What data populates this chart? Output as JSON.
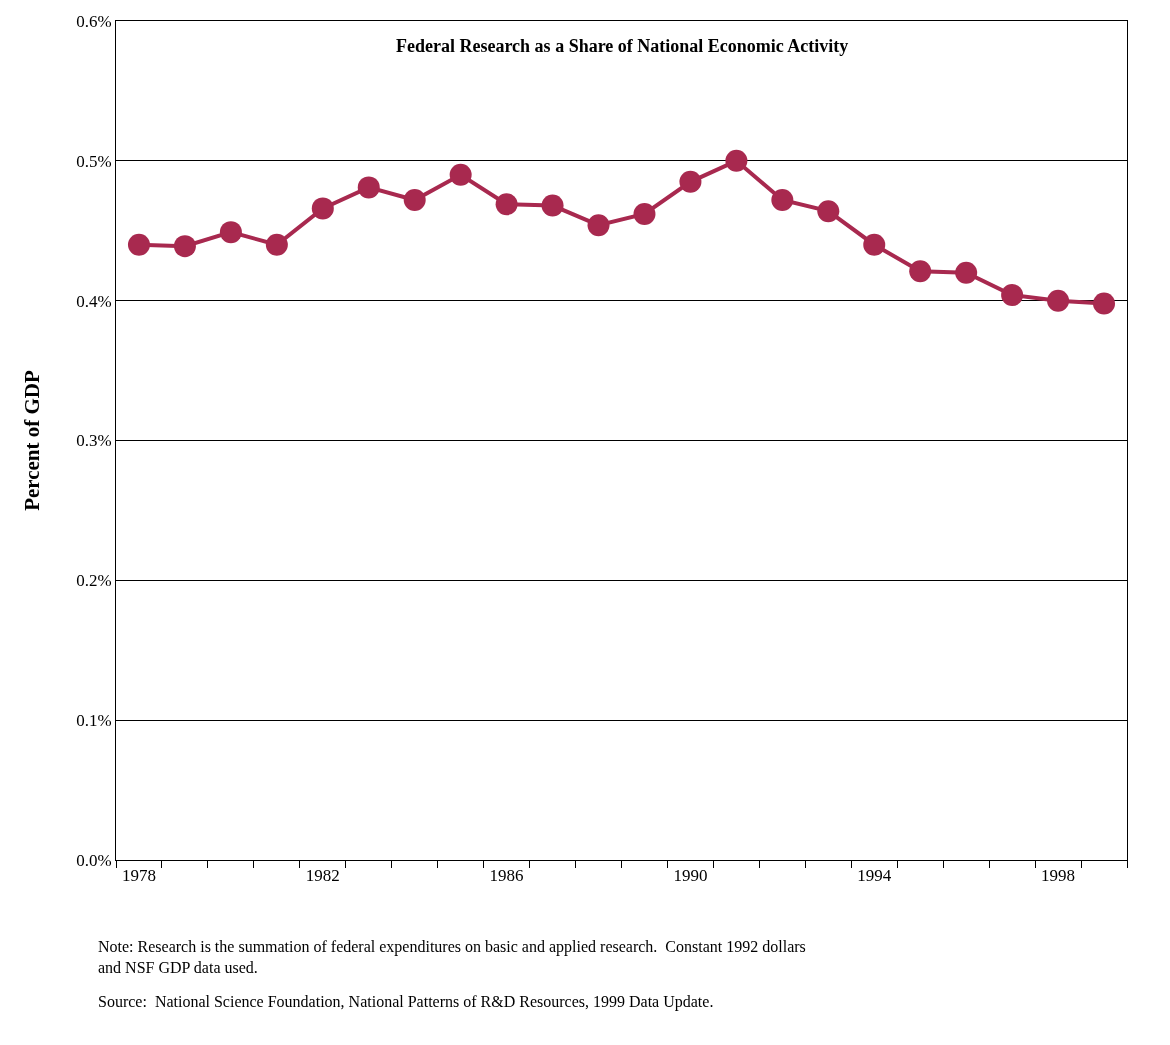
{
  "chart_data": {
    "type": "line",
    "title": "Federal Research as a Share of National Economic Activity",
    "ylabel": "Percent of GDP",
    "x": [
      1978,
      1979,
      1980,
      1981,
      1982,
      1983,
      1984,
      1985,
      1986,
      1987,
      1988,
      1989,
      1990,
      1991,
      1992,
      1993,
      1994,
      1995,
      1996,
      1997,
      1998,
      1999
    ],
    "series": [
      {
        "color": "#a8294f",
        "values": [
          0.44,
          0.439,
          0.449,
          0.44,
          0.466,
          0.481,
          0.472,
          0.49,
          0.469,
          0.468,
          0.454,
          0.462,
          0.485,
          0.5,
          0.472,
          0.464,
          0.44,
          0.421,
          0.42,
          0.404,
          0.4,
          0.398
        ]
      }
    ],
    "xlim": [
      1977.5,
      1999.5
    ],
    "xticks": [
      {
        "value": 1977.5,
        "label": null
      },
      {
        "value": 1978.5,
        "label": null
      },
      {
        "value": 1979.5,
        "label": null
      },
      {
        "value": 1980.5,
        "label": null
      },
      {
        "value": 1981.5,
        "label": null
      },
      {
        "value": 1982.5,
        "label": null
      },
      {
        "value": 1983.5,
        "label": null
      },
      {
        "value": 1984.5,
        "label": null
      },
      {
        "value": 1985.5,
        "label": null
      },
      {
        "value": 1986.5,
        "label": null
      },
      {
        "value": 1987.5,
        "label": null
      },
      {
        "value": 1988.5,
        "label": null
      },
      {
        "value": 1989.5,
        "label": null
      },
      {
        "value": 1990.5,
        "label": null
      },
      {
        "value": 1991.5,
        "label": null
      },
      {
        "value": 1992.5,
        "label": null
      },
      {
        "value": 1993.5,
        "label": null
      },
      {
        "value": 1994.5,
        "label": null
      },
      {
        "value": 1995.5,
        "label": null
      },
      {
        "value": 1996.5,
        "label": null
      },
      {
        "value": 1997.5,
        "label": null
      },
      {
        "value": 1998.5,
        "label": null
      },
      {
        "value": 1999.5,
        "label": null
      },
      1978,
      1982,
      1986,
      1990,
      1994,
      1998
    ],
    "ylim": [
      0,
      0.6
    ],
    "yticks": [
      {
        "value": 0,
        "label": "0.0%"
      },
      {
        "value": 0.1,
        "label": "0.1%"
      },
      {
        "value": 0.2,
        "label": "0.2%"
      },
      {
        "value": 0.3,
        "label": "0.3%"
      },
      {
        "value": 0.4,
        "label": "0.4%"
      },
      {
        "value": 0.5,
        "label": "0.5%"
      },
      {
        "value": 0.6,
        "label": "0.6%"
      }
    ],
    "grid": "y",
    "marker": "circle",
    "line_style": "solid",
    "annotations": [
      "Note: Research is the summation of federal expenditures on basic and applied research.  Constant 1992 dollars and NSF GDP data used.",
      "Source:  National Science Foundation, National Patterns of R&D Resources, 1999 Data Update."
    ]
  }
}
